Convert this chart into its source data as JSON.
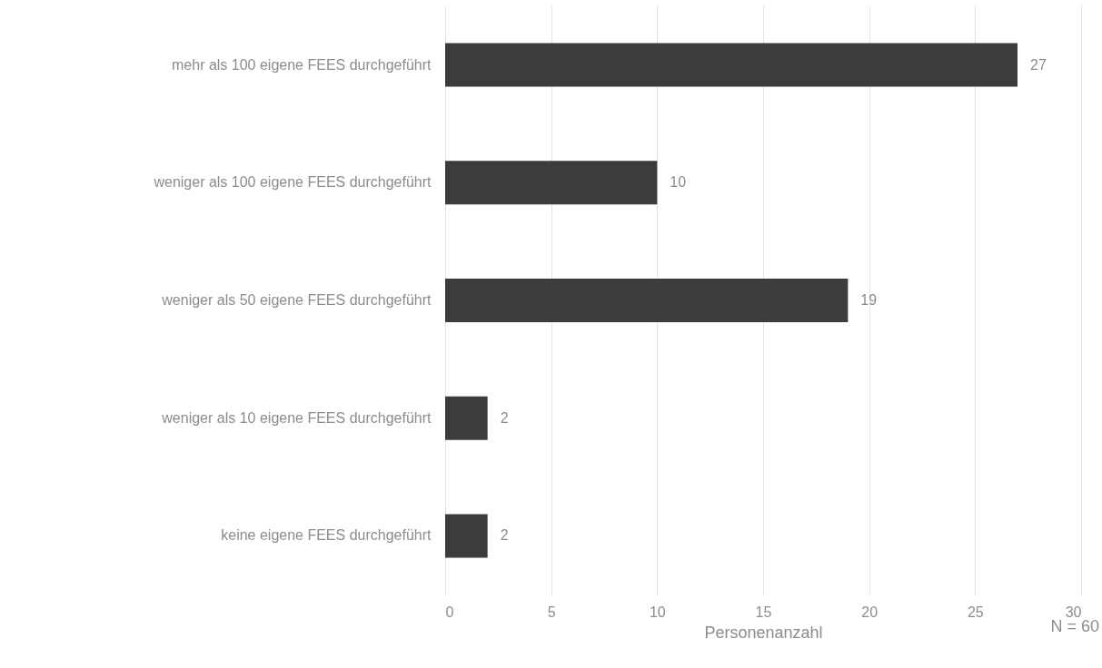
{
  "chart_data": {
    "type": "bar",
    "orientation": "horizontal",
    "categories": [
      "mehr als 100 eigene FEES durchgeführt",
      "weniger als 100 eigene FEES durchgeführt",
      "weniger als 50 eigene FEES durchgeführt",
      "weniger als 10 eigene FEES durchgeführt",
      "keine eigene FEES durchgeführt"
    ],
    "values": [
      27,
      10,
      19,
      2,
      2
    ],
    "color": "#3c3c3c",
    "xlim": [
      0,
      30
    ],
    "xticks": [
      0,
      5,
      10,
      15,
      20,
      25,
      30
    ],
    "xlabel": "Personenanzahl",
    "annotations": [
      "N = 60"
    ],
    "data_labels": true,
    "grid": "x"
  }
}
